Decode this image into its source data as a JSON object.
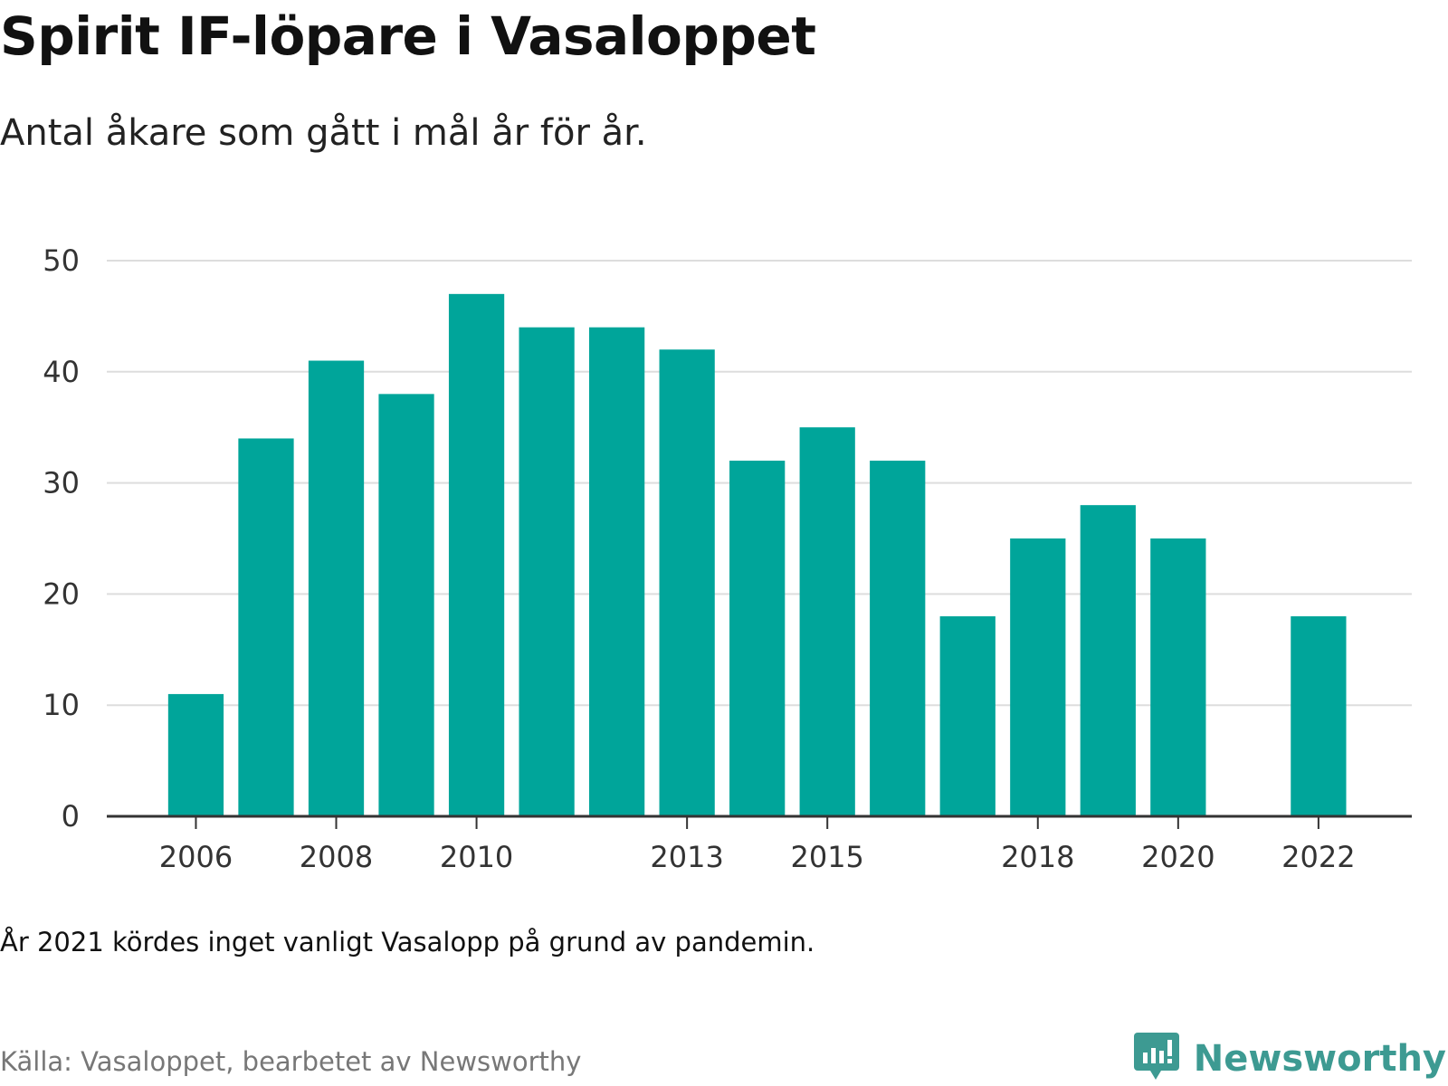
{
  "title": "Spirit IF-löpare i Vasaloppet",
  "subtitle": "Antal åkare som gått i mål år för år.",
  "note": "År 2021 kördes inget vanligt Vasalopp på grund av pandemin.",
  "source": "Källa: Vasaloppet, bearbetet av Newsworthy",
  "brand": {
    "name": "Newsworthy",
    "icon": "newsworthy-logo-icon",
    "color": "#3d9a92"
  },
  "colors": {
    "bar": "#00a59a",
    "grid": "#dddddd",
    "axis": "#333333"
  },
  "chart_data": {
    "type": "bar",
    "categories": [
      "2006",
      "2007",
      "2008",
      "2009",
      "2010",
      "2011",
      "2012",
      "2013",
      "2014",
      "2015",
      "2016",
      "2017",
      "2018",
      "2019",
      "2020",
      "2021",
      "2022"
    ],
    "values": [
      11,
      34,
      41,
      38,
      47,
      44,
      44,
      42,
      32,
      35,
      32,
      18,
      25,
      28,
      25,
      null,
      18
    ],
    "x_tick_labels": [
      "2006",
      "2008",
      "2010",
      "2013",
      "2015",
      "2018",
      "2020",
      "2022"
    ],
    "y_ticks": [
      0,
      10,
      20,
      30,
      40,
      50
    ],
    "ylim": [
      0,
      50
    ],
    "xlabel": "",
    "ylabel": "",
    "grid": true
  }
}
